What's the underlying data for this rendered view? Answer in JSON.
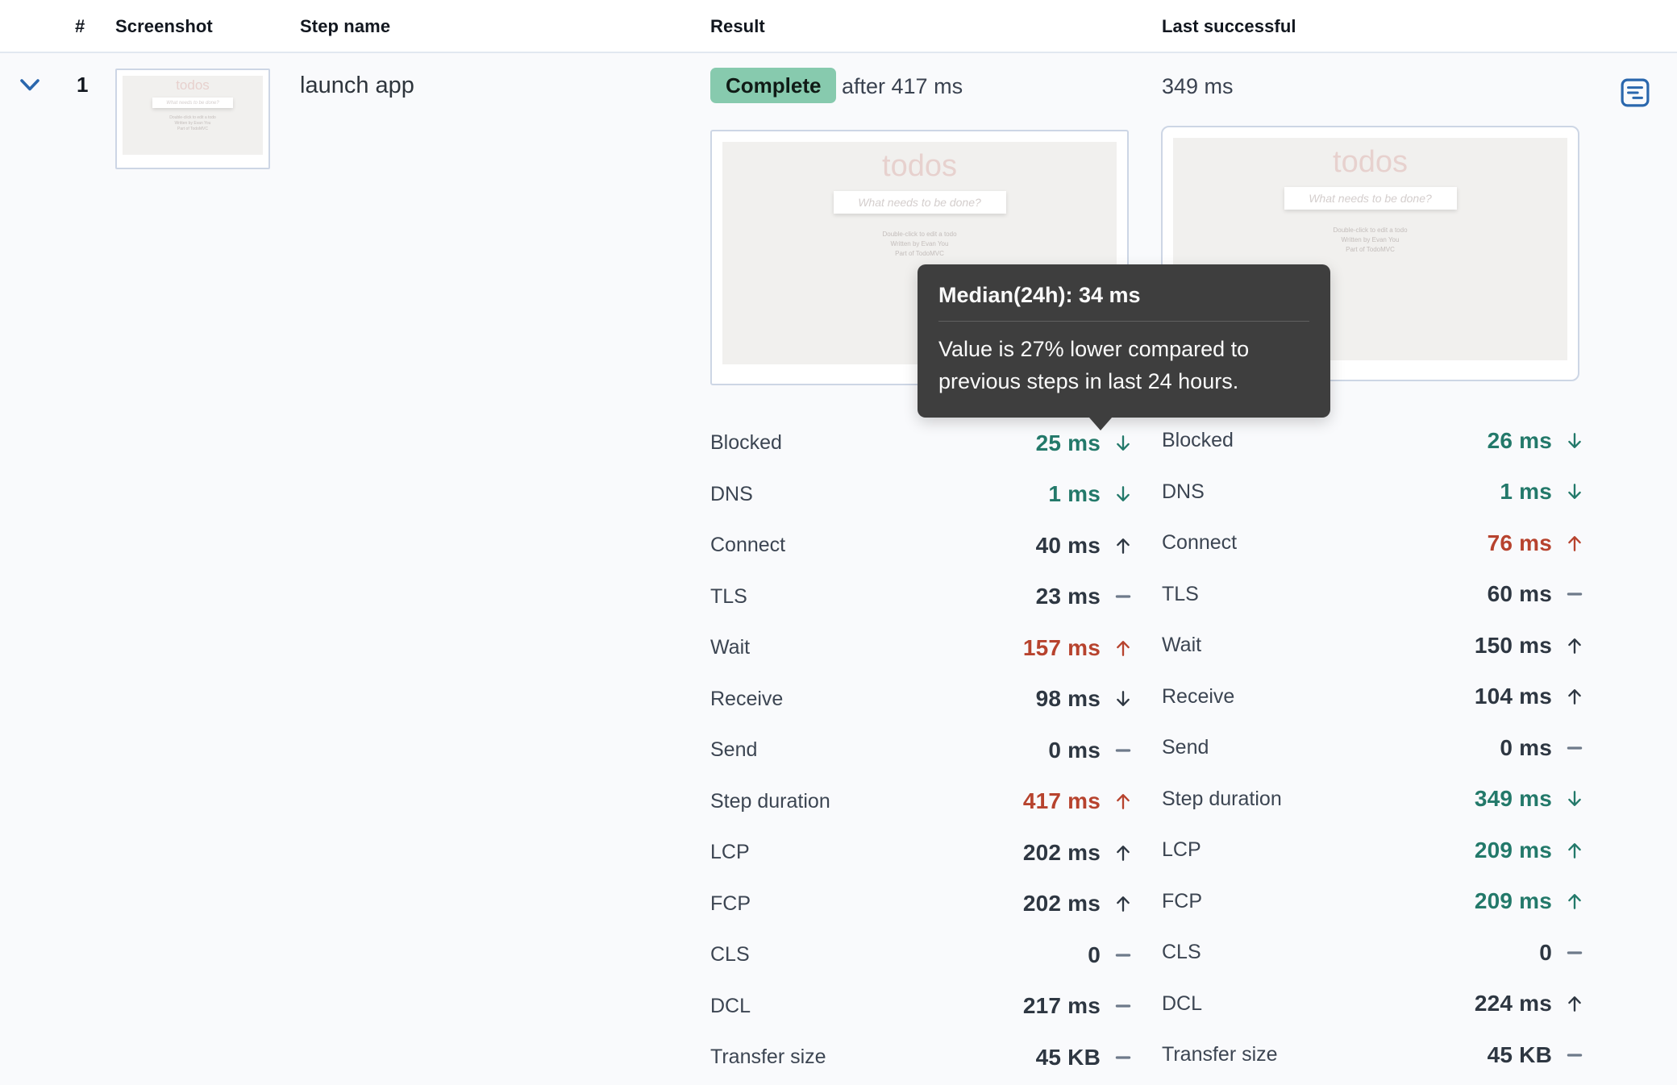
{
  "table": {
    "columns": [
      "#",
      "Screenshot",
      "Step name",
      "Result",
      "Last successful"
    ]
  },
  "step": {
    "number": "1",
    "name": "launch app",
    "status": "Complete",
    "result_after": "after 417 ms",
    "last_successful_duration": "349 ms"
  },
  "tooltip": {
    "title": "Median(24h): 34 ms",
    "body": "Value is 27% lower compared to previous steps in last 24 hours."
  },
  "todo_preview": {
    "title": "todos",
    "input_placeholder": "What needs to be done?",
    "footer_lines": [
      "Double-click to edit a todo",
      "Written by Evan You",
      "Part of TodoMVC"
    ]
  },
  "metrics": {
    "result": [
      {
        "label": "Blocked",
        "value": "25 ms",
        "trend": "down",
        "tone": "good"
      },
      {
        "label": "DNS",
        "value": "1 ms",
        "trend": "down",
        "tone": "good"
      },
      {
        "label": "Connect",
        "value": "40 ms",
        "trend": "up",
        "tone": "neutral"
      },
      {
        "label": "TLS",
        "value": "23 ms",
        "trend": "flat",
        "tone": "neutral"
      },
      {
        "label": "Wait",
        "value": "157 ms",
        "trend": "up",
        "tone": "bad"
      },
      {
        "label": "Receive",
        "value": "98 ms",
        "trend": "down",
        "tone": "neutral"
      },
      {
        "label": "Send",
        "value": "0 ms",
        "trend": "flat",
        "tone": "neutral"
      },
      {
        "label": "Step duration",
        "value": "417 ms",
        "trend": "up",
        "tone": "bad"
      },
      {
        "label": "LCP",
        "value": "202 ms",
        "trend": "up",
        "tone": "neutral"
      },
      {
        "label": "FCP",
        "value": "202 ms",
        "trend": "up",
        "tone": "neutral"
      },
      {
        "label": "CLS",
        "value": "0",
        "trend": "flat",
        "tone": "neutral"
      },
      {
        "label": "DCL",
        "value": "217 ms",
        "trend": "flat",
        "tone": "neutral"
      },
      {
        "label": "Transfer size",
        "value": "45 KB",
        "trend": "flat",
        "tone": "neutral"
      }
    ],
    "last_successful": [
      {
        "label": "Blocked",
        "value": "26 ms",
        "trend": "down",
        "tone": "good"
      },
      {
        "label": "DNS",
        "value": "1 ms",
        "trend": "down",
        "tone": "good"
      },
      {
        "label": "Connect",
        "value": "76 ms",
        "trend": "up",
        "tone": "bad"
      },
      {
        "label": "TLS",
        "value": "60 ms",
        "trend": "flat",
        "tone": "neutral"
      },
      {
        "label": "Wait",
        "value": "150 ms",
        "trend": "up",
        "tone": "neutral"
      },
      {
        "label": "Receive",
        "value": "104 ms",
        "trend": "up",
        "tone": "neutral"
      },
      {
        "label": "Send",
        "value": "0 ms",
        "trend": "flat",
        "tone": "neutral"
      },
      {
        "label": "Step duration",
        "value": "349 ms",
        "trend": "down",
        "tone": "good"
      },
      {
        "label": "LCP",
        "value": "209 ms",
        "trend": "up",
        "tone": "good"
      },
      {
        "label": "FCP",
        "value": "209 ms",
        "trend": "up",
        "tone": "good"
      },
      {
        "label": "CLS",
        "value": "0",
        "trend": "flat",
        "tone": "neutral"
      },
      {
        "label": "DCL",
        "value": "224 ms",
        "trend": "up",
        "tone": "neutral"
      },
      {
        "label": "Transfer size",
        "value": "45 KB",
        "trend": "flat",
        "tone": "neutral"
      }
    ]
  },
  "colors": {
    "good": "#23796a",
    "bad": "#b7432e",
    "neutral": "#2e3742",
    "flat_dash": "#6e7a8a",
    "badge_bg": "#87caae",
    "accent_blue": "#2a67ad"
  }
}
